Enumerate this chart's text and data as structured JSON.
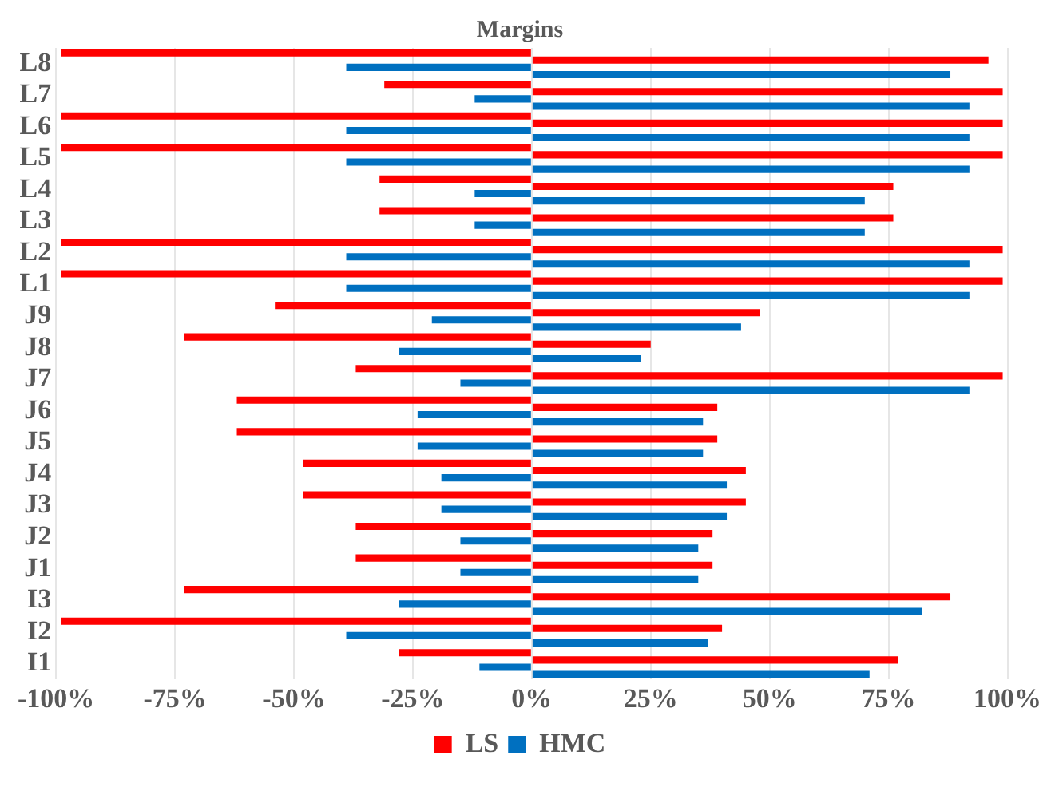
{
  "chart_data": {
    "type": "bar",
    "title": "Margins",
    "orientation": "horizontal",
    "categories": [
      "L8",
      "L7",
      "L6",
      "L5",
      "L4",
      "L3",
      "L2",
      "L1",
      "J9",
      "J8",
      "J7",
      "J6",
      "J5",
      "J4",
      "J3",
      "J2",
      "J1",
      "I3",
      "I2",
      "I1"
    ],
    "series": [
      {
        "name": "LS",
        "color": "#ff0000",
        "values": [
          -99,
          -31,
          -99,
          -99,
          -32,
          -32,
          -99,
          -99,
          -54,
          -73,
          -37,
          -62,
          -62,
          -48,
          -48,
          -37,
          -37,
          -73,
          -99,
          -28
        ]
      },
      {
        "color": "#ff0000",
        "values": [
          96,
          99,
          99,
          99,
          76,
          76,
          99,
          99,
          48,
          25,
          99,
          39,
          39,
          45,
          45,
          38,
          38,
          88,
          40,
          77
        ]
      },
      {
        "name": "HMC",
        "color": "#0070c0",
        "values": [
          -39,
          -12,
          -39,
          -39,
          -12,
          -12,
          -39,
          -39,
          -21,
          -28,
          -15,
          -24,
          -24,
          -19,
          -19,
          -15,
          -15,
          -28,
          -39,
          -11
        ]
      },
      {
        "color": "#0070c0",
        "values": [
          88,
          92,
          92,
          92,
          70,
          70,
          92,
          92,
          44,
          23,
          92,
          36,
          36,
          41,
          41,
          35,
          35,
          82,
          37,
          71
        ]
      }
    ],
    "xlim": [
      -100,
      100
    ],
    "xticks": [
      {
        "value": -100,
        "label": "-100%"
      },
      {
        "value": -75,
        "label": "-75%"
      },
      {
        "value": -50,
        "label": "-50%"
      },
      {
        "value": -25,
        "label": "-25%"
      },
      {
        "value": 0,
        "label": "0%"
      },
      {
        "value": 25,
        "label": "25%"
      },
      {
        "value": 50,
        "label": "50%"
      },
      {
        "value": 75,
        "label": "75%"
      },
      {
        "value": 100,
        "label": "100%"
      }
    ],
    "grid": "x",
    "legend": "bottom"
  }
}
